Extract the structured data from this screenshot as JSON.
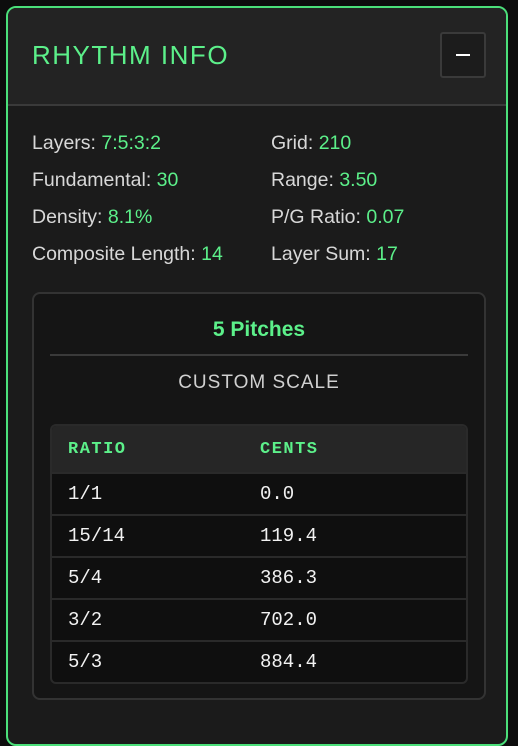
{
  "header": {
    "title": "RHYTHM INFO",
    "collapse_icon": "minus-icon"
  },
  "stats": [
    {
      "label": "Layers:",
      "value": "7:5:3:2"
    },
    {
      "label": "Grid:",
      "value": "210"
    },
    {
      "label": "Fundamental:",
      "value": "30"
    },
    {
      "label": "Range:",
      "value": "3.50"
    },
    {
      "label": "Density:",
      "value": "8.1%"
    },
    {
      "label": "P/G Ratio:",
      "value": "0.07"
    },
    {
      "label": "Composite Length:",
      "value": "14"
    },
    {
      "label": "Layer Sum:",
      "value": "17"
    }
  ],
  "scale": {
    "pitch_count": "5 Pitches",
    "name": "CUSTOM SCALE",
    "columns": [
      "RATIO",
      "CENTS"
    ],
    "rows": [
      [
        "1/1",
        "0.0"
      ],
      [
        "15/14",
        "119.4"
      ],
      [
        "5/4",
        "386.3"
      ],
      [
        "3/2",
        "702.0"
      ],
      [
        "5/3",
        "884.4"
      ]
    ]
  },
  "colors": {
    "accent": "#5cf08a",
    "panel_border": "#4be07a",
    "background": "#1b1b1b"
  }
}
